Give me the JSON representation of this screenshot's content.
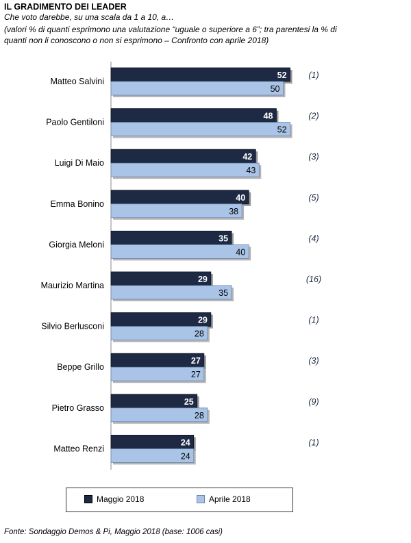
{
  "header": {
    "title": "IL GRADIMENTO DEI LEADER",
    "subtitle": "Che voto darebbe, su una scala da 1 a 10, a…",
    "note": "(valori % di quanti esprimono una valutazione “uguale o superiore a 6”; tra parentesi la % di quanti non li conoscono o non si esprimono – Confronto con aprile 2018)"
  },
  "footer": {
    "source": "Fonte: Sondaggio Demos & Pi, Maggio 2018 (base: 1006 casi)"
  },
  "colors": {
    "maggio": "#1e2a44",
    "aprile": "#a9c4e6",
    "axis": "#888888"
  },
  "chart_data": {
    "type": "bar",
    "orientation": "horizontal",
    "categories": [
      "Matteo Salvini",
      "Paolo Gentiloni",
      "Luigi Di Maio",
      "Emma Bonino",
      "Giorgia Meloni",
      "Maurizio Martina",
      "Silvio Berlusconi",
      "Beppe Grillo",
      "Pietro Grasso",
      "Matteo Renzi"
    ],
    "series": [
      {
        "name": "Maggio 2018",
        "values": [
          52,
          48,
          42,
          40,
          35,
          29,
          29,
          27,
          25,
          24
        ]
      },
      {
        "name": "Aprile 2018",
        "values": [
          50,
          52,
          43,
          38,
          40,
          35,
          28,
          27,
          28,
          24
        ]
      }
    ],
    "annotations": [
      "(1)",
      "(2)",
      "(3)",
      "(5)",
      "(4)",
      "(16)",
      "(1)",
      "(3)",
      "(9)",
      "(1)"
    ],
    "xlim": [
      0,
      60
    ],
    "grid": false,
    "legend": "bottom"
  }
}
